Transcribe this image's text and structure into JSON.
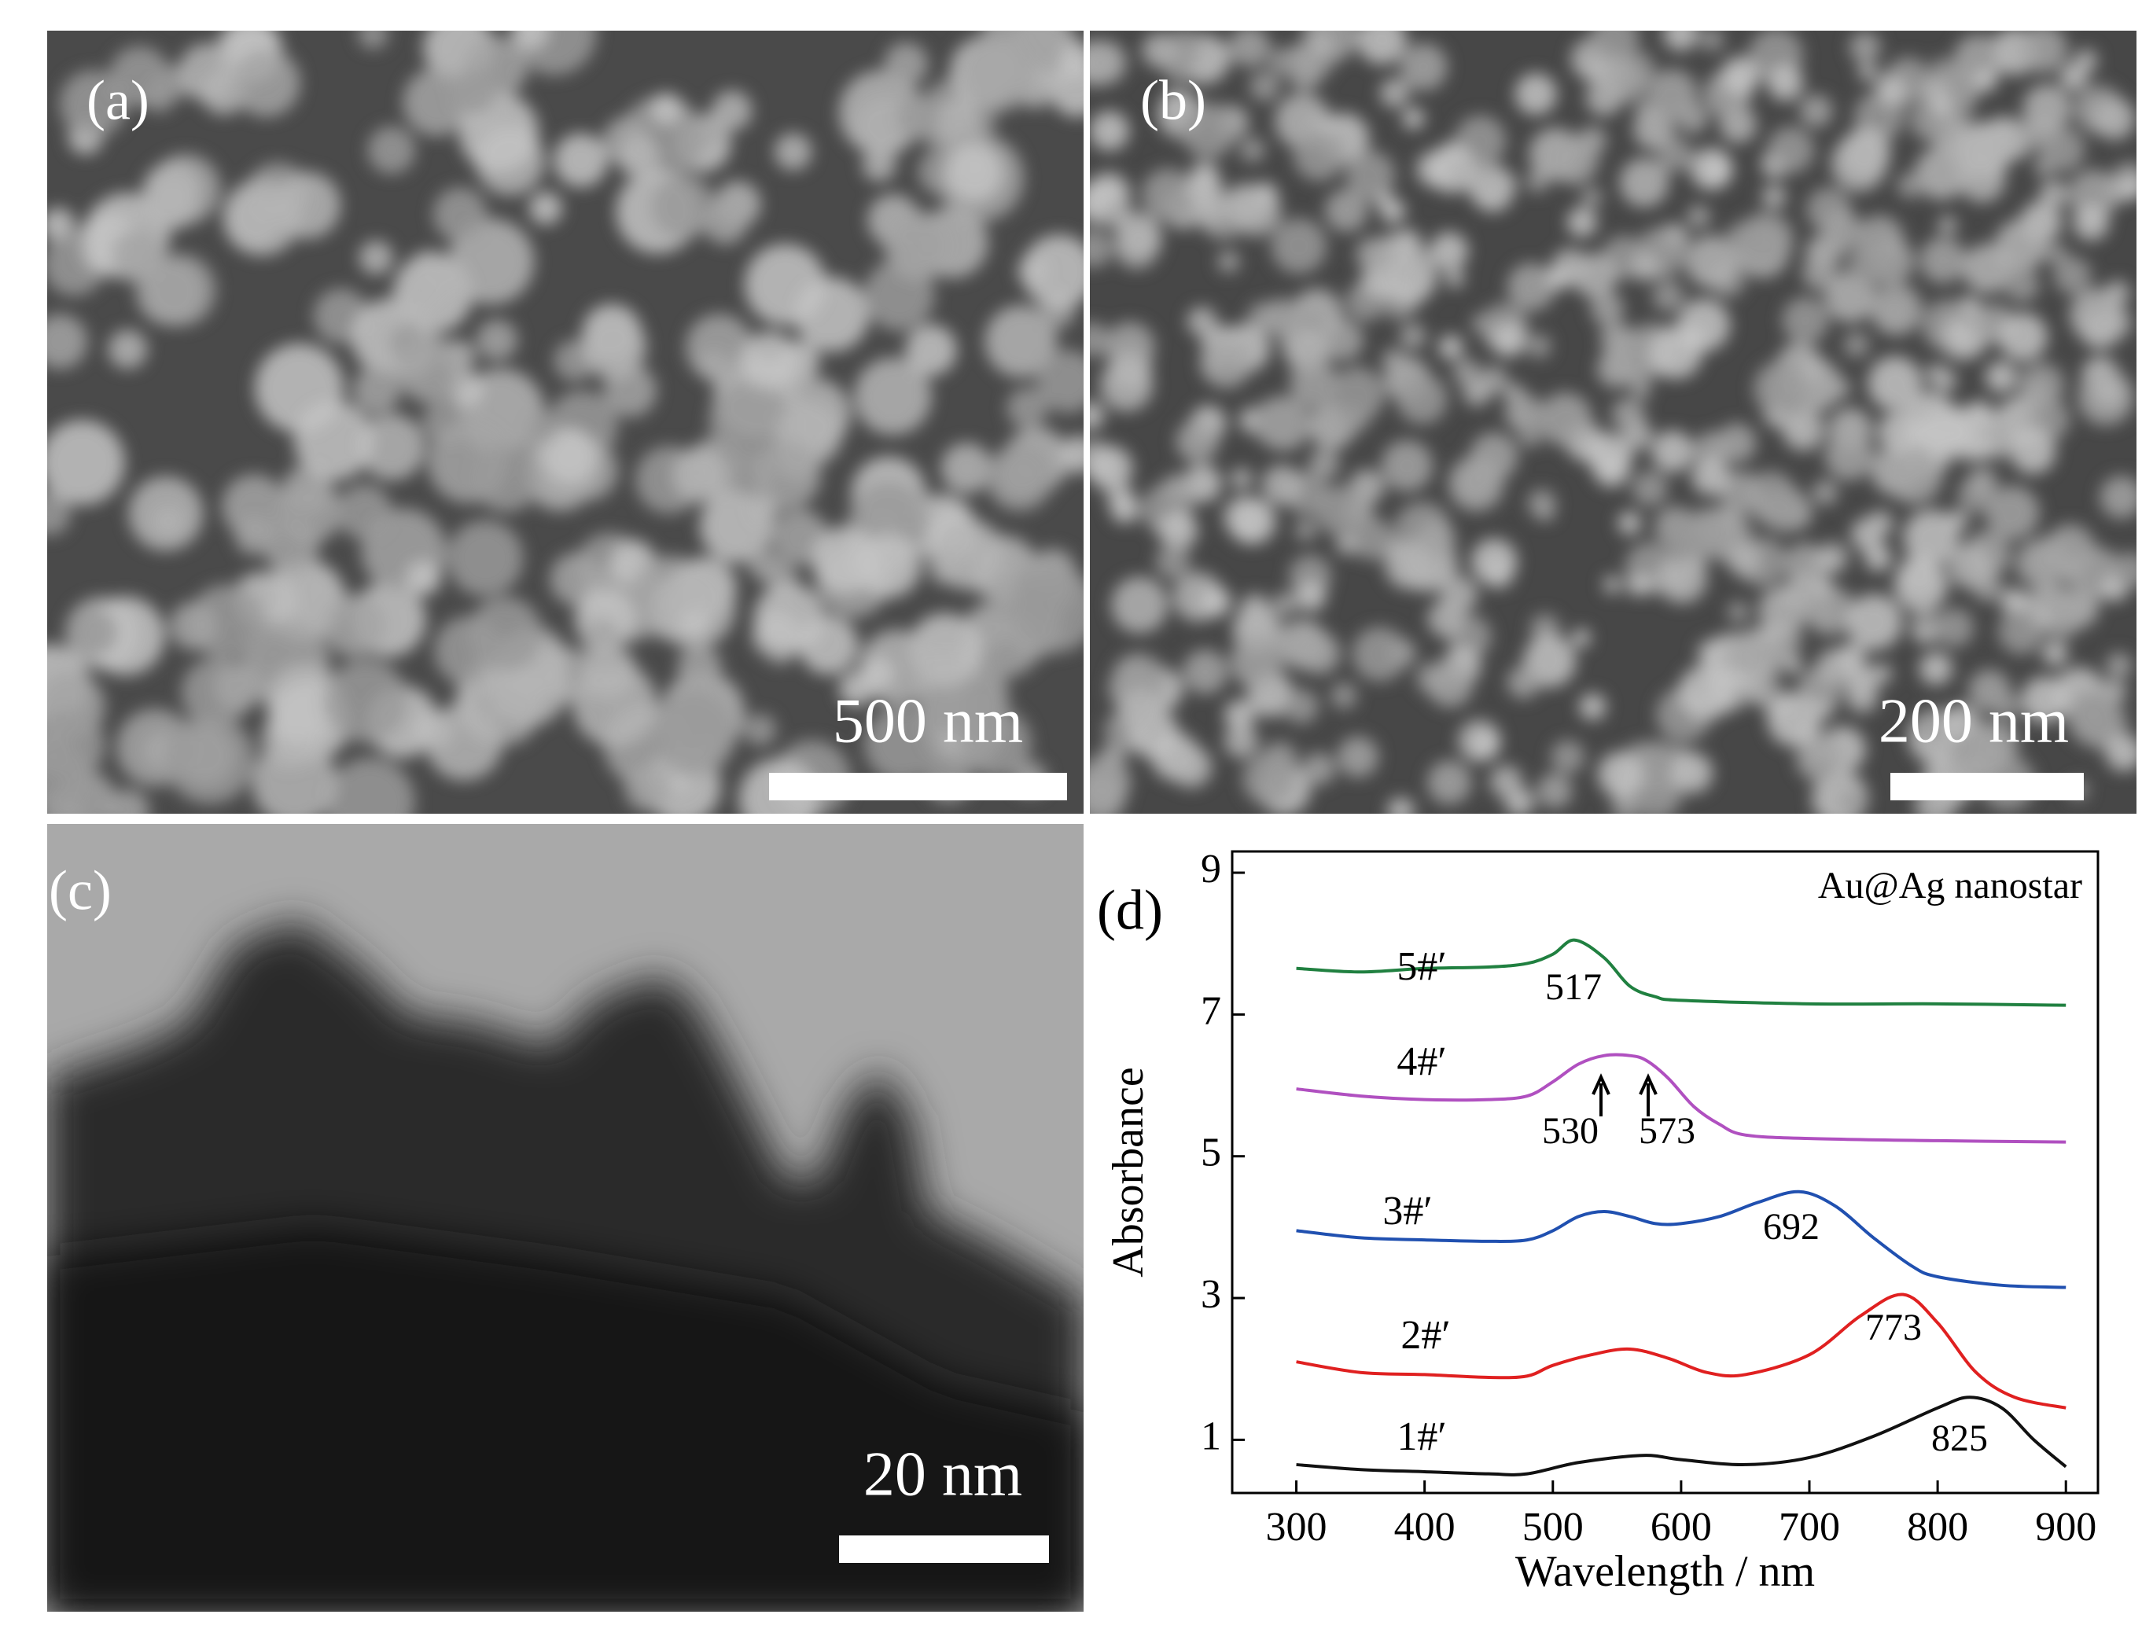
{
  "panels": [
    {
      "label": "(a)",
      "scale_bar": "500 nm"
    },
    {
      "label": "(b)",
      "scale_bar": "200 nm"
    },
    {
      "label": "(c)",
      "scale_bar": "20 nm"
    }
  ],
  "chart_data": {
    "type": "line",
    "panel_label": "(d)",
    "title": "Au@Ag nanostar",
    "x_label": "Wavelength / nm",
    "y_label": "Absorbance",
    "xlim": [
      250,
      925
    ],
    "ylim": [
      0.25,
      9.3
    ],
    "xticks": [
      300,
      400,
      500,
      600,
      700,
      800,
      900
    ],
    "yticks": [
      1,
      3,
      5,
      7,
      9
    ],
    "series": [
      {
        "name": "1#′",
        "color": "#111111",
        "x": [
          300,
          350,
          400,
          450,
          480,
          520,
          570,
          600,
          650,
          700,
          750,
          800,
          825,
          850,
          875,
          900
        ],
        "values": [
          0.65,
          0.58,
          0.55,
          0.52,
          0.52,
          0.68,
          0.78,
          0.72,
          0.65,
          0.75,
          1.05,
          1.45,
          1.6,
          1.45,
          1.0,
          0.62
        ]
      },
      {
        "name": "2#′",
        "color": "#e02020",
        "x": [
          300,
          350,
          400,
          450,
          480,
          500,
          530,
          560,
          590,
          620,
          650,
          700,
          740,
          773,
          800,
          830,
          860,
          900
        ],
        "values": [
          2.1,
          1.95,
          1.92,
          1.88,
          1.9,
          2.05,
          2.2,
          2.28,
          2.15,
          1.95,
          1.92,
          2.2,
          2.75,
          3.05,
          2.65,
          1.95,
          1.6,
          1.45
        ]
      },
      {
        "name": "3#′",
        "color": "#2050b0",
        "x": [
          300,
          350,
          400,
          450,
          480,
          500,
          520,
          540,
          560,
          580,
          600,
          630,
          660,
          692,
          720,
          750,
          780,
          800,
          850,
          900
        ],
        "values": [
          3.95,
          3.85,
          3.82,
          3.8,
          3.82,
          3.95,
          4.15,
          4.22,
          4.15,
          4.05,
          4.05,
          4.15,
          4.35,
          4.5,
          4.3,
          3.85,
          3.45,
          3.3,
          3.18,
          3.15
        ]
      },
      {
        "name": "4#′",
        "color": "#b050c0",
        "x": [
          300,
          350,
          400,
          450,
          480,
          500,
          520,
          540,
          560,
          573,
          590,
          610,
          630,
          650,
          700,
          800,
          900
        ],
        "values": [
          5.95,
          5.85,
          5.8,
          5.8,
          5.85,
          6.05,
          6.3,
          6.42,
          6.42,
          6.35,
          6.1,
          5.7,
          5.45,
          5.3,
          5.25,
          5.22,
          5.2
        ]
      },
      {
        "name": "5#′",
        "color": "#208040",
        "x": [
          300,
          350,
          400,
          450,
          480,
          500,
          517,
          540,
          560,
          580,
          600,
          700,
          800,
          900
        ],
        "values": [
          7.65,
          7.6,
          7.65,
          7.67,
          7.72,
          7.85,
          8.05,
          7.8,
          7.4,
          7.25,
          7.2,
          7.15,
          7.15,
          7.13
        ]
      }
    ],
    "annotations": [
      "517",
      "530",
      "573",
      "692",
      "773",
      "825"
    ]
  }
}
